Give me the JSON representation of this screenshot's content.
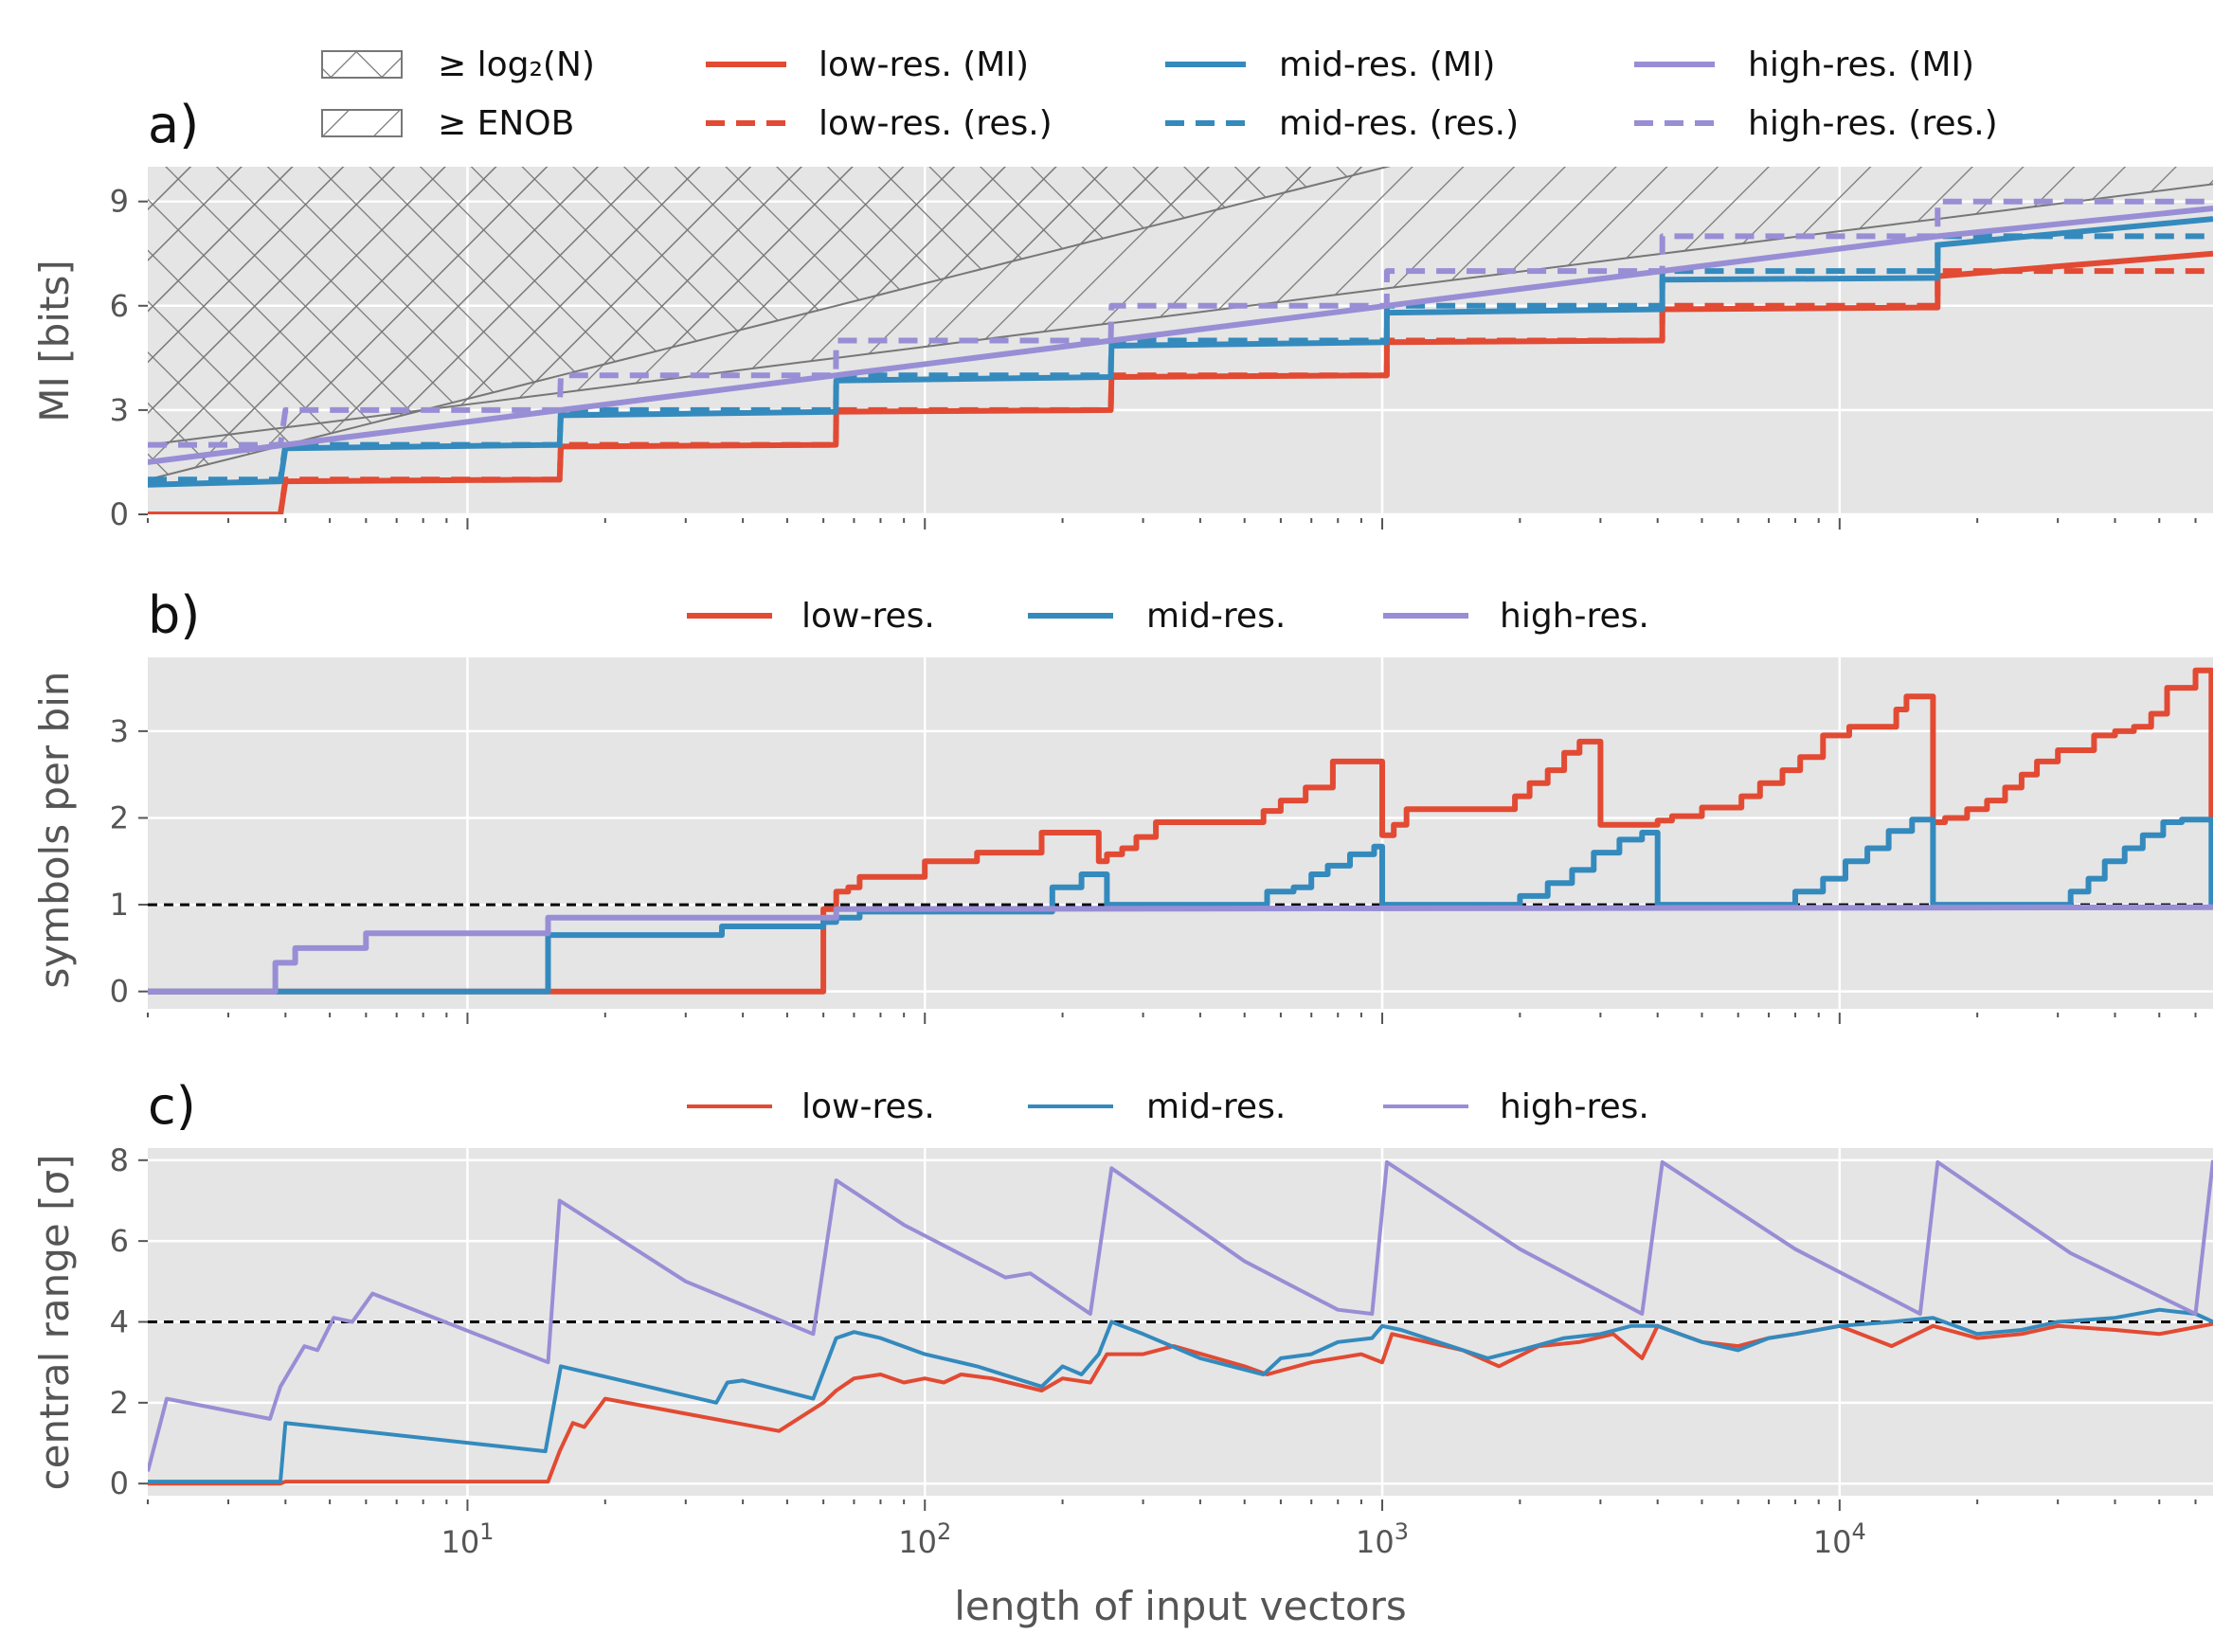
{
  "colors": {
    "low": "#E24A33",
    "mid": "#348ABD",
    "high": "#988ED5",
    "panel_bg": "#E5E5E5",
    "grid": "#FFFFFF",
    "hatch": "#777777",
    "tick_text": "#555555",
    "ref_line": "#000000"
  },
  "figure": {
    "xlabel": "length of input vectors",
    "x_scale": "log",
    "xlim": [
      2,
      65536
    ],
    "x_ticks": [
      {
        "value": 10,
        "label": "10",
        "exp": "1"
      },
      {
        "value": 100,
        "label": "10",
        "exp": "2"
      },
      {
        "value": 1000,
        "label": "10",
        "exp": "3"
      },
      {
        "value": 10000,
        "label": "10",
        "exp": "4"
      }
    ]
  },
  "legend_a": {
    "hatch_log2_label": "≥ log₂(N)",
    "hatch_enob_label": "≥ ENOB",
    "low_mi": "low-res. (MI)",
    "low_res": "low-res. (res.)",
    "mid_mi": "mid-res. (MI)",
    "mid_res": "mid-res. (res.)",
    "high_mi": "high-res. (MI)",
    "high_res": "high-res. (res.)"
  },
  "legend_b": {
    "low": "low-res.",
    "mid": "mid-res.",
    "high": "high-res."
  },
  "legend_c": {
    "low": "low-res.",
    "mid": "mid-res.",
    "high": "high-res."
  },
  "chart_data": [
    {
      "panel": "a)",
      "type": "line",
      "ylabel": "MI [bits]",
      "x_scale": "log",
      "ylim": [
        0,
        10
      ],
      "yticks": [
        0,
        3,
        6,
        9
      ],
      "grid": true,
      "legend_placement": "above plot, 4 columns",
      "hatched_regions": [
        {
          "name": "≥ log₂(N)",
          "boundary": "y = log2(x)",
          "pattern": "cross-hatch"
        },
        {
          "name": "≥ ENOB",
          "boundary": "y = log2(x)/2 + 1.5",
          "pattern": "diagonal"
        }
      ],
      "series": [
        {
          "name": "low-res. (MI)",
          "style": "solid",
          "color_key": "low",
          "x": [
            2,
            3.9,
            4,
            15.9,
            16,
            63.9,
            64,
            255,
            256,
            1023,
            1024,
            4095,
            4096,
            16383,
            16384,
            65536
          ],
          "y": [
            0,
            0,
            0.95,
            1.0,
            1.95,
            2.0,
            2.95,
            3.0,
            3.95,
            4.0,
            4.95,
            5.0,
            5.9,
            5.95,
            6.85,
            7.5
          ]
        },
        {
          "name": "low-res. (res.)",
          "style": "dashed",
          "color_key": "low",
          "x": [
            2,
            3.9,
            4,
            15.9,
            16,
            63.9,
            64,
            255,
            256,
            1023,
            1024,
            4095,
            4096,
            16383,
            16384,
            65536
          ],
          "y": [
            0,
            0,
            1,
            1,
            2,
            2,
            3,
            3,
            4,
            4,
            5,
            5,
            6,
            6,
            7,
            7
          ]
        },
        {
          "name": "mid-res. (MI)",
          "style": "solid",
          "color_key": "mid",
          "x": [
            2,
            3.9,
            4,
            15.9,
            16,
            63.9,
            64,
            255,
            256,
            1023,
            1024,
            4095,
            4096,
            16383,
            16384,
            65536
          ],
          "y": [
            0.85,
            0.95,
            1.9,
            2.0,
            2.85,
            2.95,
            3.85,
            3.95,
            4.85,
            4.95,
            5.8,
            5.9,
            6.75,
            6.8,
            7.75,
            8.5
          ]
        },
        {
          "name": "mid-res. (res.)",
          "style": "dashed",
          "color_key": "mid",
          "x": [
            2,
            3.9,
            4,
            15.9,
            16,
            63.9,
            64,
            255,
            256,
            1023,
            1024,
            4095,
            4096,
            16383,
            16384,
            65536
          ],
          "y": [
            1,
            1,
            2,
            2,
            3,
            3,
            4,
            4,
            5,
            5,
            6,
            6,
            7,
            7,
            8,
            8
          ]
        },
        {
          "name": "high-res. (MI)",
          "style": "solid",
          "color_key": "high",
          "x": [
            2,
            4,
            8,
            16,
            32,
            64,
            128,
            256,
            512,
            1024,
            2048,
            4096,
            8192,
            16384,
            32768,
            65536
          ],
          "y": [
            1.5,
            2.0,
            2.5,
            3.0,
            3.5,
            4.0,
            4.5,
            5.0,
            5.5,
            6.0,
            6.5,
            7.0,
            7.5,
            8.0,
            8.4,
            8.8
          ]
        },
        {
          "name": "high-res. (res.)",
          "style": "dashed",
          "color_key": "high",
          "x": [
            2,
            3.9,
            4,
            15.9,
            16,
            63.9,
            64,
            255,
            256,
            1023,
            1024,
            4095,
            4096,
            16383,
            16384,
            65536
          ],
          "y": [
            2,
            2,
            3,
            3,
            4,
            4,
            5,
            5,
            6,
            6,
            7,
            7,
            8,
            8,
            9,
            9
          ]
        }
      ]
    },
    {
      "panel": "b)",
      "type": "line",
      "ylabel": "symbols per bin",
      "x_scale": "log",
      "ylim": [
        -0.2,
        3.85
      ],
      "yticks": [
        0,
        1,
        2,
        3
      ],
      "grid": true,
      "reference_line": 1,
      "legend_placement": "above plot, 3 columns",
      "series": [
        {
          "name": "low-res.",
          "color_key": "low",
          "x": [
            2,
            60,
            60,
            64,
            64,
            68,
            68,
            72,
            72,
            100,
            100,
            130,
            130,
            180,
            180,
            190,
            190,
            240,
            240,
            250,
            250,
            270,
            270,
            290,
            290,
            320,
            320,
            550,
            550,
            600,
            600,
            680,
            680,
            780,
            780,
            1000,
            1000,
            1060,
            1060,
            1130,
            1130,
            1950,
            1950,
            2100,
            2100,
            2300,
            2300,
            2500,
            2500,
            2700,
            2700,
            3000,
            3000,
            4000,
            4000,
            4300,
            4300,
            5000,
            5000,
            6100,
            6100,
            6700,
            6700,
            7500,
            7500,
            8200,
            8200,
            9200,
            9200,
            10000,
            10000,
            10500,
            10500,
            13300,
            13300,
            14000,
            14000,
            16000,
            16000,
            17000,
            17000,
            19000,
            19000,
            21000,
            21000,
            23000,
            23000,
            25000,
            25000,
            27000,
            27000,
            30000,
            30000,
            36000,
            36000,
            40000,
            40000,
            44000,
            44000,
            48000,
            48000,
            52000,
            52000,
            60000,
            60000,
            65000,
            65000
          ],
          "y": [
            0,
            0,
            0.95,
            0.95,
            1.15,
            1.15,
            1.2,
            1.2,
            1.32,
            1.32,
            1.5,
            1.5,
            1.6,
            1.6,
            1.83,
            1.83,
            1.83,
            1.83,
            1.5,
            1.5,
            1.58,
            1.58,
            1.65,
            1.65,
            1.78,
            1.78,
            1.95,
            1.95,
            2.08,
            2.08,
            2.2,
            2.2,
            2.35,
            2.35,
            2.65,
            2.65,
            1.8,
            1.8,
            1.92,
            1.92,
            2.1,
            2.1,
            2.25,
            2.25,
            2.4,
            2.4,
            2.55,
            2.55,
            2.75,
            2.75,
            2.88,
            2.88,
            1.92,
            1.92,
            1.97,
            1.97,
            2.02,
            2.02,
            2.12,
            2.12,
            2.25,
            2.25,
            2.4,
            2.4,
            2.55,
            2.55,
            2.7,
            2.7,
            2.95,
            2.95,
            2.95,
            2.95,
            3.05,
            3.05,
            3.25,
            3.25,
            3.4,
            3.4,
            1.95,
            1.95,
            2.0,
            2.0,
            2.1,
            2.1,
            2.2,
            2.2,
            2.35,
            2.35,
            2.5,
            2.5,
            2.65,
            2.65,
            2.78,
            2.78,
            2.95,
            2.95,
            3.0,
            3.0,
            3.05,
            3.05,
            3.2,
            3.2,
            3.5,
            3.5,
            3.7,
            3.7,
            2.0
          ]
        },
        {
          "name": "mid-res.",
          "color_key": "mid",
          "x": [
            2,
            15,
            15,
            36,
            36,
            60,
            60,
            64,
            64,
            72,
            72,
            190,
            190,
            220,
            220,
            240,
            240,
            250,
            250,
            560,
            560,
            640,
            640,
            700,
            700,
            760,
            760,
            850,
            850,
            960,
            960,
            1000,
            1000,
            2000,
            2000,
            2300,
            2300,
            2600,
            2600,
            2900,
            2900,
            3300,
            3300,
            3700,
            3700,
            4000,
            4000,
            8000,
            8000,
            9200,
            9200,
            10300,
            10300,
            11500,
            11500,
            12800,
            12800,
            14400,
            14400,
            16000,
            16000,
            32000,
            32000,
            35000,
            35000,
            38000,
            38000,
            42000,
            42000,
            46000,
            46000,
            51000,
            51000,
            56000,
            56000,
            65000,
            65000
          ],
          "y": [
            0,
            0,
            0.65,
            0.65,
            0.75,
            0.75,
            0.8,
            0.8,
            0.85,
            0.85,
            0.92,
            0.92,
            1.2,
            1.2,
            1.35,
            1.35,
            1.35,
            1.35,
            1.0,
            1.0,
            1.15,
            1.15,
            1.2,
            1.2,
            1.35,
            1.35,
            1.45,
            1.45,
            1.58,
            1.58,
            1.67,
            1.67,
            1.0,
            1.0,
            1.1,
            1.1,
            1.25,
            1.25,
            1.4,
            1.4,
            1.6,
            1.6,
            1.75,
            1.75,
            1.83,
            1.83,
            1.0,
            1.0,
            1.15,
            1.15,
            1.3,
            1.3,
            1.5,
            1.5,
            1.65,
            1.65,
            1.85,
            1.85,
            1.98,
            1.98,
            1.0,
            1.0,
            1.15,
            1.15,
            1.3,
            1.3,
            1.5,
            1.5,
            1.65,
            1.65,
            1.8,
            1.8,
            1.95,
            1.95,
            1.98,
            1.98,
            1.0
          ]
        },
        {
          "name": "high-res.",
          "color_key": "high",
          "x": [
            2,
            3.8,
            3.8,
            4.2,
            4.2,
            6,
            6,
            15,
            15,
            64,
            64,
            65536
          ],
          "y": [
            0,
            0,
            0.33,
            0.33,
            0.5,
            0.5,
            0.67,
            0.67,
            0.85,
            0.85,
            0.95,
            0.97
          ]
        }
      ]
    },
    {
      "panel": "c)",
      "type": "line",
      "ylabel": "central range [σ]",
      "x_scale": "log",
      "ylim": [
        -0.3,
        8.3
      ],
      "yticks": [
        0,
        2,
        4,
        6,
        8
      ],
      "grid": true,
      "reference_line": 4,
      "legend_placement": "above plot, 3 columns",
      "series": [
        {
          "name": "low-res.",
          "color_key": "low",
          "x": [
            2,
            3.9,
            4,
            15,
            15.9,
            17,
            18,
            20,
            48,
            60,
            64,
            70,
            80,
            90,
            100,
            110,
            120,
            140,
            180,
            200,
            230,
            250,
            300,
            350,
            500,
            560,
            700,
            900,
            1000,
            1050,
            1500,
            1800,
            2200,
            2700,
            3200,
            3700,
            4000,
            5000,
            6000,
            7000,
            8000,
            10000,
            13000,
            16000,
            20000,
            25000,
            30000,
            40000,
            50000,
            65536
          ],
          "y": [
            0,
            0,
            0.05,
            0.05,
            0.8,
            1.5,
            1.4,
            2.1,
            1.3,
            2.0,
            2.3,
            2.6,
            2.7,
            2.5,
            2.6,
            2.5,
            2.7,
            2.6,
            2.3,
            2.6,
            2.5,
            3.2,
            3.2,
            3.4,
            2.9,
            2.7,
            3.0,
            3.2,
            3.0,
            3.7,
            3.3,
            2.9,
            3.4,
            3.5,
            3.7,
            3.1,
            3.9,
            3.5,
            3.4,
            3.6,
            3.7,
            3.9,
            3.4,
            3.9,
            3.6,
            3.7,
            3.9,
            3.8,
            3.7,
            3.95
          ]
        },
        {
          "name": "mid-res.",
          "color_key": "mid",
          "x": [
            2,
            3.9,
            4,
            14.8,
            16,
            35,
            37,
            40,
            57,
            64,
            70,
            80,
            100,
            130,
            180,
            200,
            220,
            240,
            256,
            300,
            400,
            550,
            600,
            700,
            800,
            950,
            1000,
            1100,
            1700,
            2000,
            2500,
            3000,
            3500,
            4000,
            5000,
            6000,
            7000,
            8000,
            10000,
            13000,
            16000,
            20000,
            25000,
            30000,
            40000,
            50000,
            60000,
            65536
          ],
          "y": [
            0.05,
            0.05,
            1.5,
            0.8,
            2.9,
            2.0,
            2.5,
            2.55,
            2.1,
            3.6,
            3.75,
            3.6,
            3.2,
            2.9,
            2.4,
            2.9,
            2.7,
            3.2,
            4.0,
            3.7,
            3.1,
            2.7,
            3.1,
            3.2,
            3.5,
            3.6,
            3.9,
            3.8,
            3.1,
            3.3,
            3.6,
            3.7,
            3.9,
            3.9,
            3.5,
            3.3,
            3.6,
            3.7,
            3.9,
            4.0,
            4.1,
            3.7,
            3.8,
            4.0,
            4.1,
            4.3,
            4.2,
            4.0
          ]
        },
        {
          "name": "high-res.",
          "color_key": "high",
          "x": [
            2,
            2.2,
            3.7,
            3.9,
            4.4,
            4.7,
            5.1,
            5.6,
            6.2,
            15,
            15.9,
            30,
            57,
            64,
            90,
            150,
            170,
            230,
            256,
            500,
            800,
            950,
            1024,
            2000,
            3700,
            4096,
            8000,
            15000,
            16384,
            32000,
            60000,
            65536
          ],
          "y": [
            0.3,
            2.1,
            1.6,
            2.4,
            3.4,
            3.3,
            4.1,
            4.0,
            4.7,
            3.0,
            7.0,
            5.0,
            3.7,
            7.5,
            6.4,
            5.1,
            5.2,
            4.2,
            7.8,
            5.5,
            4.3,
            4.2,
            7.95,
            5.8,
            4.2,
            7.95,
            5.8,
            4.2,
            7.95,
            5.7,
            4.2,
            8.0
          ]
        }
      ]
    }
  ]
}
